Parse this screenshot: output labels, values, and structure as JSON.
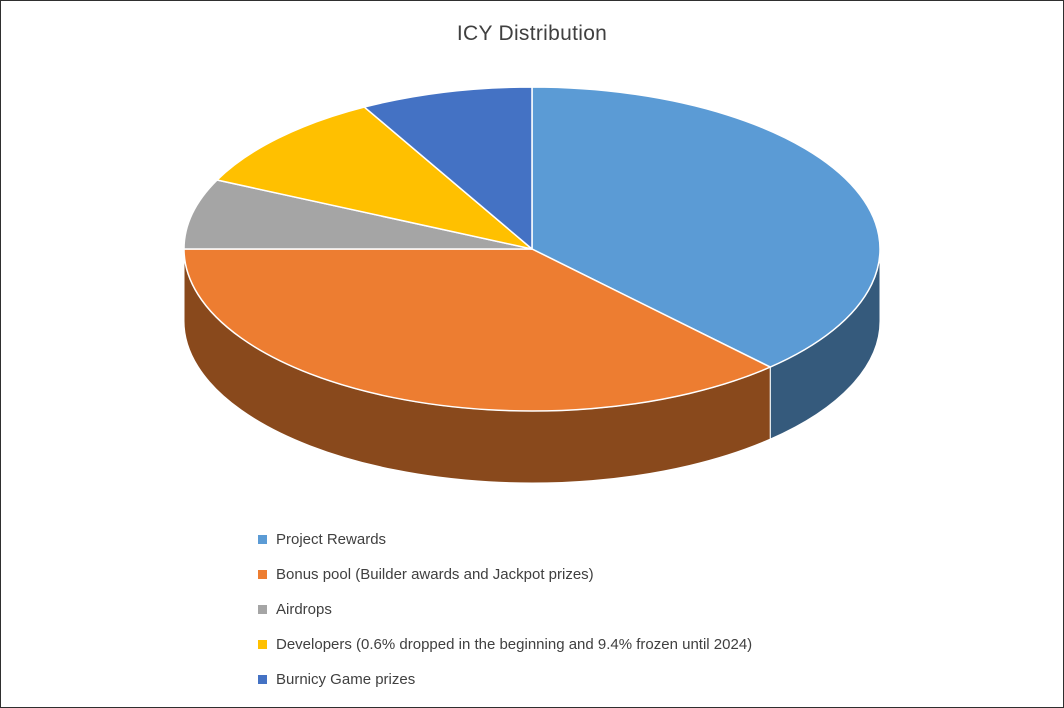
{
  "chart_data": {
    "type": "pie",
    "title": "ICY Distribution",
    "effect": "3d",
    "labels": [
      "Project Rewards",
      "Bonus pool (Builder awards and Jackpot prizes)",
      "Airdrops",
      "Developers (0.6% dropped in the beginning and 9.4% frozen until 2024)",
      "Burnicy Game prizes"
    ],
    "values": [
      38,
      37,
      7,
      10,
      8
    ],
    "colors": [
      "#5B9BD5",
      "#ED7D31",
      "#A5A5A5",
      "#FFC000",
      "#4472C4"
    ],
    "start_angle_deg": -90,
    "direction": "clockwise",
    "legend_position": "bottom-left",
    "data_labels": "none",
    "background": "#FFFFFF",
    "title_color": "#404040",
    "legend_text_color": "#404040"
  }
}
